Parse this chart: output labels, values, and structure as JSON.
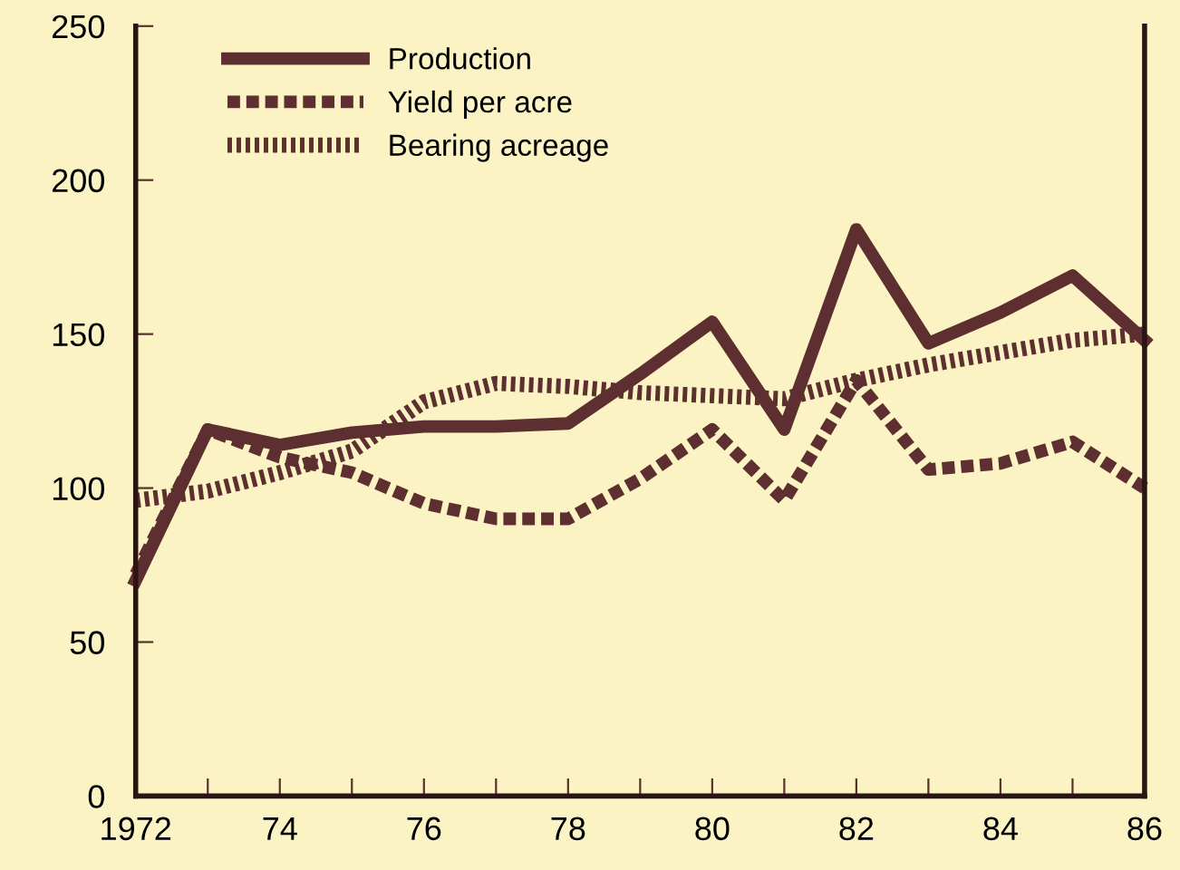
{
  "chart_data": {
    "type": "line",
    "x": [
      1972,
      1973,
      1974,
      1975,
      1976,
      1977,
      1978,
      1979,
      1980,
      1981,
      1982,
      1983,
      1984,
      1985,
      1986
    ],
    "series": [
      {
        "name": "Production",
        "color": "#5e2f30",
        "line_style": "solid",
        "values": [
          70,
          119,
          114,
          118,
          120,
          120,
          121,
          137,
          154,
          119,
          184,
          147,
          157,
          169,
          148
        ]
      },
      {
        "name": "Yield per acre",
        "color": "#5e2f30",
        "line_style": "dashed",
        "values": [
          72,
          119,
          110,
          105,
          95,
          90,
          90,
          103,
          119,
          96,
          135,
          106,
          108,
          115,
          100
        ]
      },
      {
        "name": "Bearing acreage",
        "color": "#5e2f30",
        "line_style": "dotted",
        "values": [
          96,
          99,
          105,
          112,
          128,
          134,
          133,
          131,
          130,
          129,
          135,
          140,
          144,
          148,
          150
        ]
      }
    ],
    "xlim": [
      1972,
      1986
    ],
    "xticks": [
      {
        "value": 1972,
        "label": "1972"
      },
      {
        "value": 1973,
        "label": null
      },
      {
        "value": 1974,
        "label": "74"
      },
      {
        "value": 1975,
        "label": null
      },
      {
        "value": 1976,
        "label": "76"
      },
      {
        "value": 1977,
        "label": null
      },
      {
        "value": 1978,
        "label": "78"
      },
      {
        "value": 1979,
        "label": null
      },
      {
        "value": 1980,
        "label": "80"
      },
      {
        "value": 1981,
        "label": null
      },
      {
        "value": 1982,
        "label": "82"
      },
      {
        "value": 1983,
        "label": null
      },
      {
        "value": 1984,
        "label": "84"
      },
      {
        "value": 1985,
        "label": null
      },
      {
        "value": 1986,
        "label": "86"
      }
    ],
    "ylim": [
      0,
      250
    ],
    "yticks": [
      0,
      50,
      100,
      150,
      200,
      250
    ],
    "grid": false,
    "legend": "top left",
    "marker": "none"
  }
}
